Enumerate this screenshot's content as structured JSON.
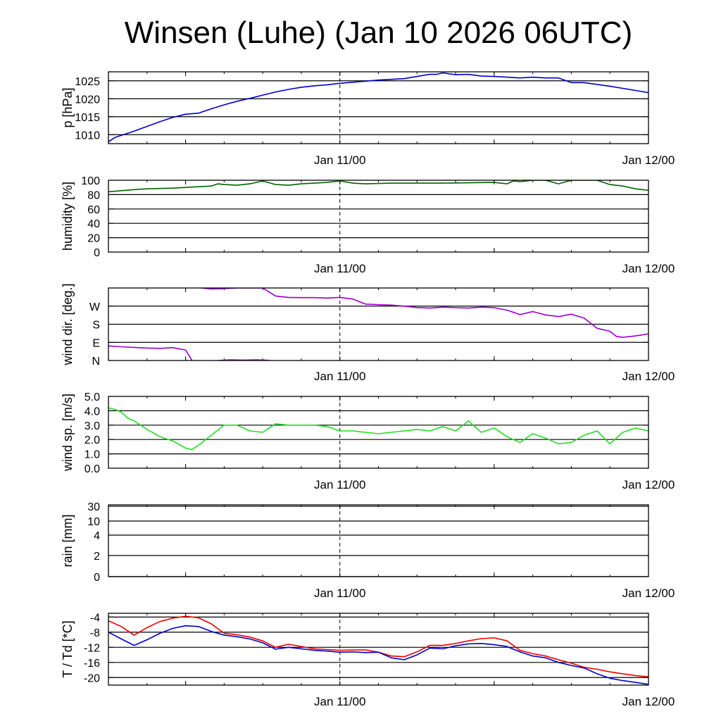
{
  "title": "Winsen (Luhe) (Jan 10 2026 06UTC)",
  "x_axis": {
    "start": "Jan 10 06UTC",
    "range_hours": [
      0,
      42
    ],
    "ticks": [
      {
        "hour": 6
      },
      {
        "hour": 18,
        "label": "Jan 11/00"
      },
      {
        "hour": 30
      },
      {
        "hour": 42,
        "label": "Jan 12/00"
      }
    ],
    "dashed_line_hour": 18
  },
  "chart_data": [
    {
      "type": "line",
      "name": "pressure",
      "ylabel": "p [hPa]",
      "ylim": [
        1007.5,
        1027.5
      ],
      "yticks": [
        {
          "v": 1010,
          "label": "1010"
        },
        {
          "v": 1015,
          "label": "1015"
        },
        {
          "v": 1020,
          "label": "1020"
        },
        {
          "v": 1025,
          "label": "1025"
        }
      ],
      "grid": true,
      "series": [
        {
          "name": "pressure",
          "color": "#0000cc",
          "x": [
            0,
            0.5,
            1,
            2,
            3,
            4,
            5,
            6,
            7,
            8,
            9,
            10,
            11,
            12,
            13,
            14,
            15,
            16,
            17,
            18,
            19,
            20,
            21,
            22,
            23,
            24,
            25,
            25.5,
            26,
            27,
            28,
            29,
            30,
            31,
            32,
            33,
            34,
            35,
            36,
            37,
            38,
            39,
            40,
            41,
            42
          ],
          "y": [
            1008.0,
            1009.2,
            1009.8,
            1011.0,
            1012.3,
            1013.6,
            1014.8,
            1015.7,
            1016.0,
            1017.2,
            1018.3,
            1019.3,
            1020.1,
            1021.0,
            1021.9,
            1022.6,
            1023.2,
            1023.6,
            1023.9,
            1024.3,
            1024.6,
            1024.9,
            1025.2,
            1025.4,
            1025.6,
            1026.2,
            1026.8,
            1026.8,
            1027.2,
            1026.7,
            1026.8,
            1026.3,
            1026.2,
            1026.0,
            1025.8,
            1026.0,
            1025.8,
            1025.8,
            1024.5,
            1024.5,
            1024.0,
            1023.5,
            1022.9,
            1022.3,
            1021.7
          ]
        }
      ]
    },
    {
      "type": "line",
      "name": "humidity",
      "ylabel": "humidity [%]",
      "ylim": [
        0,
        100
      ],
      "yticks": [
        {
          "v": 0,
          "label": "0"
        },
        {
          "v": 20,
          "label": "20"
        },
        {
          "v": 40,
          "label": "40"
        },
        {
          "v": 60,
          "label": "60"
        },
        {
          "v": 80,
          "label": "80"
        },
        {
          "v": 100,
          "label": "100"
        }
      ],
      "grid": true,
      "series": [
        {
          "name": "humidity",
          "color": "#006400",
          "x": [
            0,
            1,
            2,
            3,
            4,
            5,
            6,
            7,
            8,
            8.5,
            9,
            10,
            11,
            12,
            13,
            14,
            15,
            16,
            17,
            18,
            19,
            20,
            22,
            24,
            26,
            28,
            30,
            31,
            31.5,
            32,
            33,
            34,
            35,
            36,
            37,
            38,
            39,
            40,
            41,
            42
          ],
          "y": [
            84,
            85.5,
            87,
            88,
            88.5,
            89,
            90,
            91,
            92,
            95,
            94,
            93,
            95,
            99,
            94,
            93,
            95,
            96,
            97,
            99,
            96,
            95,
            96,
            96,
            96,
            96.5,
            97,
            95,
            99,
            98,
            100,
            100,
            95,
            100,
            100,
            100,
            94,
            92,
            88,
            86
          ]
        }
      ]
    },
    {
      "type": "line",
      "name": "wind_direction",
      "ylabel": "wind dir. [deg.]",
      "ylim": [
        0,
        360
      ],
      "yticks": [
        {
          "v": 0,
          "label": "N"
        },
        {
          "v": 90,
          "label": "E"
        },
        {
          "v": 180,
          "label": "S"
        },
        {
          "v": 270,
          "label": "W"
        }
      ],
      "grid": true,
      "series": [
        {
          "name": "dir_a",
          "color": "#9900cc",
          "x": [
            0,
            1,
            2,
            3,
            4,
            5,
            6,
            6.5
          ],
          "y": [
            72,
            68,
            65,
            62,
            60,
            64,
            52,
            0
          ]
        },
        {
          "name": "dir_b",
          "color": "#9900cc",
          "x": [
            8.5,
            9.5,
            10.5,
            11.5,
            12.5
          ],
          "y": [
            0,
            3,
            2,
            3,
            1
          ]
        },
        {
          "name": "dir_c",
          "color": "#9900cc",
          "x": [
            7.2,
            8,
            9,
            10,
            11,
            12,
            13,
            14,
            15,
            16,
            17,
            18,
            19,
            20,
            21,
            22,
            23,
            24,
            25,
            26,
            27,
            28,
            29,
            30,
            31,
            32,
            33,
            34,
            35,
            36,
            37,
            38,
            39,
            39.5,
            40,
            41,
            42
          ],
          "y": [
            360,
            355,
            357,
            360,
            360,
            360,
            320,
            313,
            312,
            312,
            310,
            313,
            305,
            280,
            277,
            275,
            270,
            263,
            260,
            265,
            262,
            260,
            265,
            262,
            250,
            228,
            243,
            226,
            218,
            230,
            210,
            160,
            145,
            120,
            115,
            122,
            132
          ]
        }
      ]
    },
    {
      "type": "line",
      "name": "wind_speed",
      "ylabel": "wind sp. [m/s]",
      "ylim": [
        0,
        5
      ],
      "yticks": [
        {
          "v": 0,
          "label": "0.0"
        },
        {
          "v": 1,
          "label": "1.0"
        },
        {
          "v": 2,
          "label": "2.0"
        },
        {
          "v": 3,
          "label": "3.0"
        },
        {
          "v": 4,
          "label": "4.0"
        },
        {
          "v": 5,
          "label": "5.0"
        }
      ],
      "grid": true,
      "series": [
        {
          "name": "wind_speed",
          "color": "#22dd22",
          "x": [
            0,
            0.5,
            1,
            1.5,
            2,
            3,
            4,
            5,
            6,
            6.5,
            7,
            8,
            9,
            10,
            11,
            12,
            13,
            14,
            15,
            16,
            17,
            18,
            19,
            20,
            21,
            22,
            23,
            24,
            25,
            26,
            27,
            28,
            29,
            30,
            31,
            32,
            33,
            34,
            35,
            36,
            37,
            38,
            39,
            40,
            41,
            42
          ],
          "y": [
            4.2,
            4.1,
            3.9,
            3.5,
            3.3,
            2.7,
            2.2,
            1.9,
            1.4,
            1.3,
            1.6,
            2.3,
            3.0,
            3.0,
            2.6,
            2.5,
            3.1,
            3.0,
            3.0,
            3.0,
            2.9,
            2.6,
            2.6,
            2.5,
            2.4,
            2.5,
            2.6,
            2.7,
            2.6,
            2.9,
            2.6,
            3.3,
            2.5,
            2.8,
            2.2,
            1.8,
            2.4,
            2.1,
            1.7,
            1.8,
            2.3,
            2.6,
            1.7,
            2.5,
            2.8,
            2.6
          ]
        }
      ]
    },
    {
      "type": "line",
      "name": "rain",
      "ylabel": "rain [mm]",
      "yticks": [
        {
          "v": 0,
          "label": "0"
        },
        {
          "v": 2,
          "label": "2"
        },
        {
          "v": 4,
          "label": "4"
        },
        {
          "v": 10,
          "label": "10"
        },
        {
          "v": 30,
          "label": "30"
        }
      ],
      "grid": true,
      "series": [
        {
          "name": "rain",
          "color": "#000000",
          "x": [
            0,
            42
          ],
          "y": [
            0,
            0
          ]
        }
      ]
    },
    {
      "type": "line",
      "name": "temperature",
      "ylabel": "T / Td [*C]",
      "ylim": [
        -22,
        -3
      ],
      "yticks": [
        {
          "v": -20,
          "label": "-20"
        },
        {
          "v": -16,
          "label": "-16"
        },
        {
          "v": -12,
          "label": "-12"
        },
        {
          "v": -8,
          "label": "-8"
        },
        {
          "v": -4,
          "label": "-4"
        }
      ],
      "grid": true,
      "series": [
        {
          "name": "T",
          "color": "#ee0000",
          "x": [
            0,
            1,
            2,
            3,
            4,
            5,
            6,
            7,
            8,
            9,
            10,
            11,
            12,
            13,
            14,
            15,
            16,
            17,
            18,
            19,
            20,
            21,
            22,
            23,
            24,
            25,
            26,
            27,
            28,
            29,
            30,
            31,
            32,
            33,
            34,
            35,
            36,
            37,
            38,
            39,
            40,
            41,
            42
          ],
          "y": [
            -5.0,
            -6.5,
            -8.8,
            -6.8,
            -5.2,
            -4.3,
            -3.8,
            -4.2,
            -5.8,
            -8.3,
            -8.7,
            -9.3,
            -10.3,
            -12.0,
            -11.2,
            -11.8,
            -12.4,
            -12.6,
            -12.8,
            -12.7,
            -12.7,
            -13.3,
            -14.3,
            -14.5,
            -13.2,
            -11.5,
            -11.5,
            -11.0,
            -10.3,
            -9.7,
            -9.5,
            -10.3,
            -12.8,
            -13.7,
            -14.3,
            -15.3,
            -16.2,
            -17.3,
            -17.8,
            -18.5,
            -19.0,
            -19.5,
            -19.8
          ]
        },
        {
          "name": "Td",
          "color": "#0000cc",
          "x": [
            0,
            1,
            2,
            3,
            4,
            5,
            6,
            7,
            8,
            9,
            10,
            11,
            12,
            13,
            14,
            15,
            16,
            17,
            18,
            19,
            20,
            21,
            22,
            23,
            24,
            25,
            26,
            27,
            28,
            29,
            30,
            31,
            32,
            33,
            34,
            35,
            36,
            37,
            38,
            39,
            40,
            41,
            42
          ],
          "y": [
            -8.0,
            -9.8,
            -11.5,
            -10.0,
            -8.3,
            -7.0,
            -6.3,
            -6.5,
            -7.8,
            -8.8,
            -9.2,
            -9.8,
            -10.8,
            -12.5,
            -12.0,
            -12.4,
            -12.8,
            -13.0,
            -13.3,
            -13.2,
            -13.4,
            -13.3,
            -14.8,
            -15.3,
            -14.0,
            -12.2,
            -12.4,
            -11.6,
            -11.1,
            -11.0,
            -11.3,
            -11.8,
            -13.2,
            -14.3,
            -14.8,
            -16.0,
            -16.8,
            -17.5,
            -19.0,
            -20.2,
            -20.8,
            -21.3,
            -21.8
          ]
        }
      ]
    }
  ]
}
